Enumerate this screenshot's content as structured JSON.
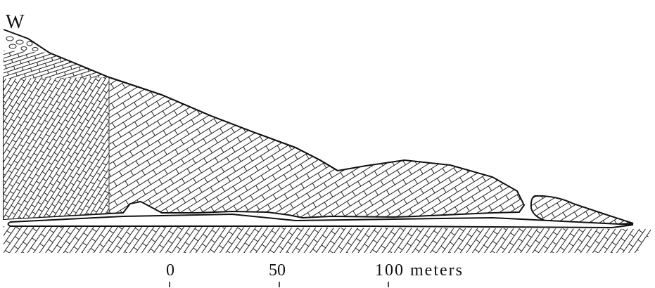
{
  "direction": "W",
  "scale": {
    "labels": [
      "0",
      "50",
      "100 meters"
    ]
  }
}
